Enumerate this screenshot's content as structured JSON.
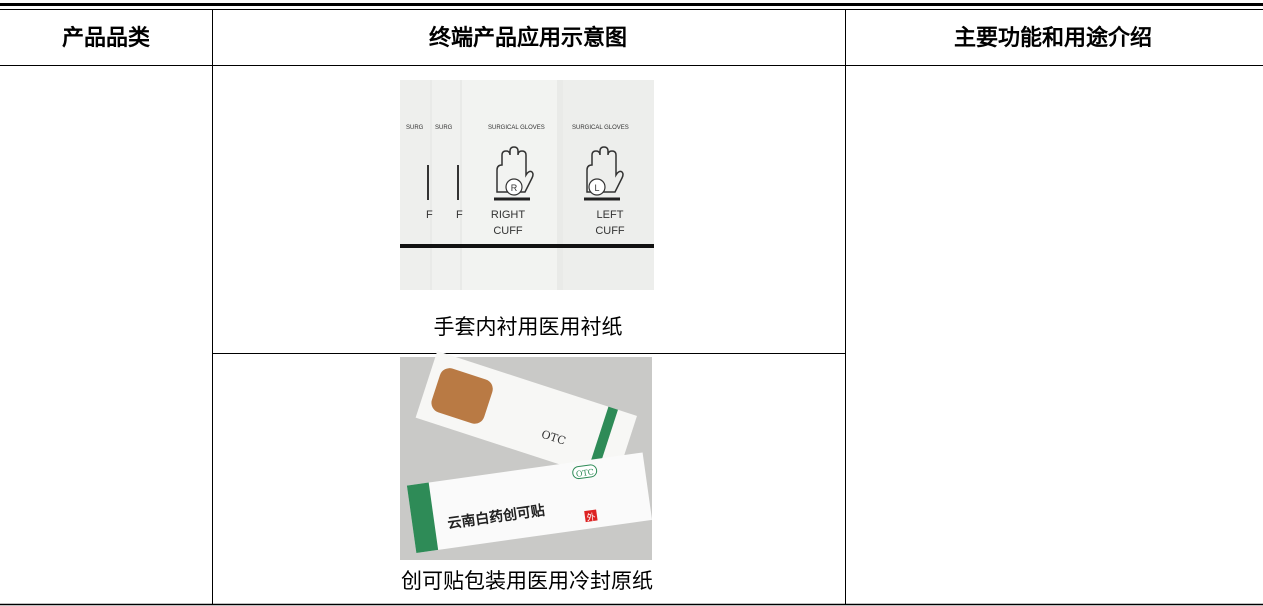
{
  "table": {
    "headers": [
      "产品品类",
      "终端产品应用示意图",
      "主要功能和用途介绍"
    ],
    "items": [
      {
        "caption": "手套内衬用医用衬纸",
        "image_text": {
          "brand": "SURGICAL GLOVES",
          "right": "RIGHT",
          "left": "LEFT",
          "cuff": "CUFF",
          "r": "R",
          "l": "L"
        }
      },
      {
        "caption": "创可贴包装用医用冷封原纸",
        "image_text": {
          "product": "云南白药创可贴",
          "otc": "OTC",
          "mark": "外"
        }
      }
    ]
  }
}
